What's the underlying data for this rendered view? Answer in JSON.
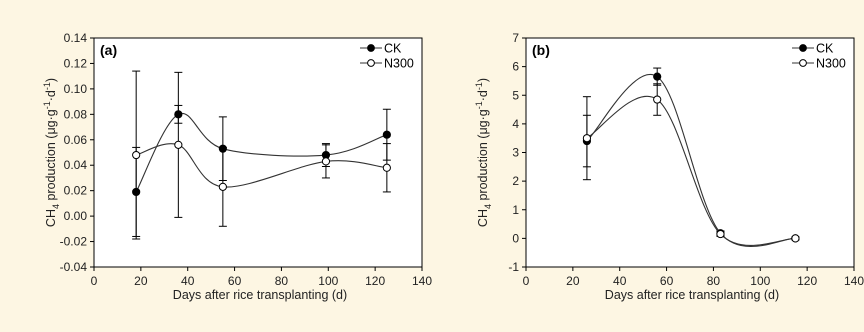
{
  "chart_data": [
    {
      "type": "scatter",
      "panel_label": "(a)",
      "xlabel": "Days after rice transplanting (d)",
      "ylabel_parts": {
        "pre": "CH",
        "sub": "4",
        "post": " production (μg·g",
        "sup1": "-1",
        "mid": "·d",
        "sup2": "-1",
        "end": ")"
      },
      "xlim": [
        0,
        140
      ],
      "ylim": [
        -0.04,
        0.14
      ],
      "x_ticks": [
        0,
        20,
        40,
        60,
        80,
        100,
        120,
        140
      ],
      "y_ticks": [
        -0.04,
        -0.02,
        0.0,
        0.02,
        0.04,
        0.06,
        0.08,
        0.1,
        0.12,
        0.14
      ],
      "y_tick_labels": [
        "-0.04",
        "-0.02",
        "0.00",
        "0.02",
        "0.04",
        "0.06",
        "0.08",
        "0.10",
        "0.12",
        "0.14"
      ],
      "x_tick_labels": [
        "0",
        "20",
        "40",
        "60",
        "80",
        "100",
        "120",
        "140"
      ],
      "grid": false,
      "legend_position": "top-right",
      "series": [
        {
          "name": "CK",
          "marker": "filled-circle",
          "x": [
            18,
            36,
            55,
            99,
            125
          ],
          "y": [
            0.019,
            0.08,
            0.053,
            0.048,
            0.064
          ],
          "err": [
            0.035,
            0.007,
            0.025,
            0.009,
            0.02
          ]
        },
        {
          "name": "N300",
          "marker": "open-circle",
          "x": [
            18,
            36,
            55,
            99,
            125
          ],
          "y": [
            0.048,
            0.056,
            0.023,
            0.043,
            0.038
          ],
          "err": [
            0.066,
            0.057,
            0.031,
            0.013,
            0.019
          ]
        }
      ]
    },
    {
      "type": "scatter",
      "panel_label": "(b)",
      "xlabel": "Days after rice transplanting (d)",
      "ylabel_parts": {
        "pre": "CH",
        "sub": "4",
        "post": " production (μg·g",
        "sup1": "-1",
        "mid": "·d",
        "sup2": "-1",
        "end": ")"
      },
      "xlim": [
        0,
        140
      ],
      "ylim": [
        -1,
        7
      ],
      "x_ticks": [
        0,
        20,
        40,
        60,
        80,
        100,
        120,
        140
      ],
      "y_ticks": [
        -1,
        0,
        1,
        2,
        3,
        4,
        5,
        6,
        7
      ],
      "y_tick_labels": [
        "-1",
        "0",
        "1",
        "2",
        "3",
        "4",
        "5",
        "6",
        "7"
      ],
      "x_tick_labels": [
        "0",
        "20",
        "40",
        "60",
        "80",
        "100",
        "120",
        "140"
      ],
      "grid": false,
      "legend_position": "top-right",
      "series": [
        {
          "name": "CK",
          "marker": "filled-circle",
          "x": [
            26,
            56,
            83,
            115
          ],
          "y": [
            3.4,
            5.65,
            0.18,
            0.0
          ],
          "err": [
            0.9,
            0.3,
            0.08,
            0.05
          ]
        },
        {
          "name": "N300",
          "marker": "open-circle",
          "x": [
            26,
            56,
            83,
            115
          ],
          "y": [
            3.5,
            4.85,
            0.15,
            0.0
          ],
          "err": [
            1.45,
            0.55,
            0.08,
            0.05
          ]
        }
      ]
    }
  ],
  "colors": {
    "line": "#333333",
    "marker_edge": "#000000",
    "background": "#fdf6e3",
    "plot_bg": "#ffffff"
  }
}
